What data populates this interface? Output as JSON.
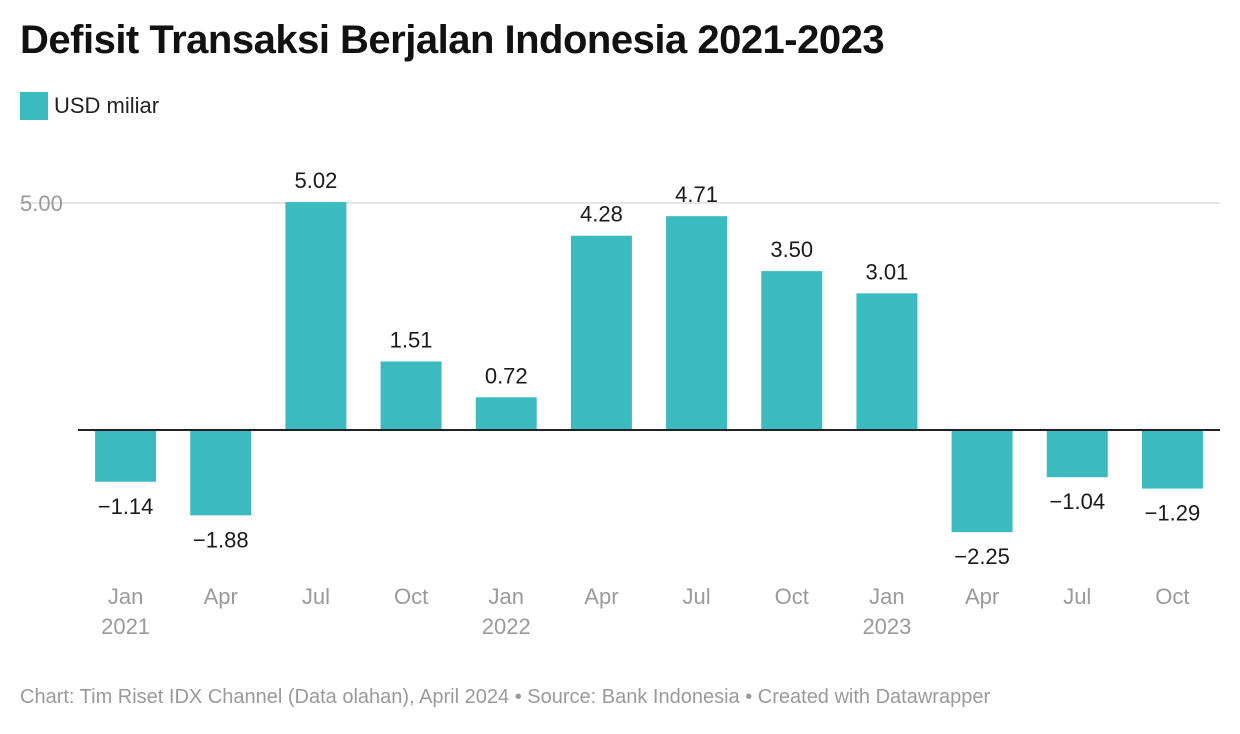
{
  "title": "Defisit Transaksi Berjalan Indonesia 2021-2023",
  "footer": {
    "credit": "Chart: Tim Riset IDX Channel (Data olahan), April 2024",
    "separator": "•",
    "source": "Source: Bank Indonesia",
    "created_with": "Created with Datawrapper"
  },
  "colors": {
    "bar": "#3bbbbf",
    "grid": "#dddddd",
    "axis": "#222222",
    "tick_label": "#9a9a9a"
  },
  "chart_data": {
    "type": "bar",
    "title": "Defisit Transaksi Berjalan Indonesia 2021-2023",
    "series": [
      {
        "name": "USD miliar",
        "values": [
          -1.14,
          -1.88,
          5.02,
          1.51,
          0.72,
          4.28,
          4.71,
          3.5,
          3.01,
          -2.25,
          -1.04,
          -1.29
        ]
      }
    ],
    "categories": [
      {
        "month": "Jan",
        "year": "2021"
      },
      {
        "month": "Apr",
        "year": ""
      },
      {
        "month": "Jul",
        "year": ""
      },
      {
        "month": "Oct",
        "year": ""
      },
      {
        "month": "Jan",
        "year": "2022"
      },
      {
        "month": "Apr",
        "year": ""
      },
      {
        "month": "Jul",
        "year": ""
      },
      {
        "month": "Oct",
        "year": ""
      },
      {
        "month": "Jan",
        "year": "2023"
      },
      {
        "month": "Apr",
        "year": ""
      },
      {
        "month": "Jul",
        "year": ""
      },
      {
        "month": "Oct",
        "year": ""
      }
    ],
    "value_labels": [
      "−1.14",
      "−1.88",
      "5.02",
      "1.51",
      "0.72",
      "4.28",
      "4.71",
      "3.50",
      "3.01",
      "−2.25",
      "−1.04",
      "−1.29"
    ],
    "y_ticks": [
      {
        "value": 5,
        "label": "5.00"
      }
    ],
    "ylim": [
      -3.15,
      5.02
    ],
    "grid": true,
    "legend_position": "top-left"
  }
}
